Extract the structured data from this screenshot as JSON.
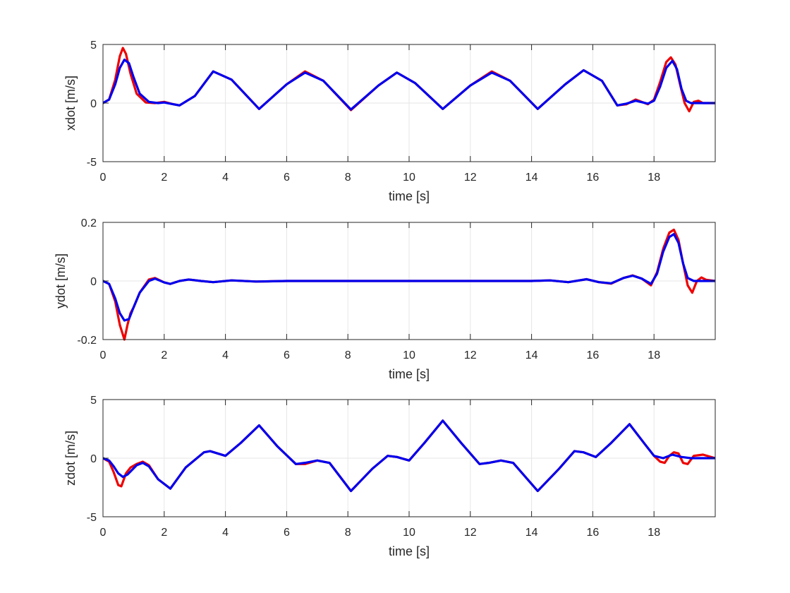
{
  "colors": {
    "reference": "#ee0000",
    "actual": "#0000ee",
    "axis": "#262626",
    "grid": "#e6e6e6"
  },
  "chart_data": [
    {
      "type": "line",
      "xlabel": "time [s]",
      "ylabel": "xdot [m/s]",
      "xlim": [
        0,
        20
      ],
      "ylim": [
        -5,
        5
      ],
      "xticks": [
        0,
        2,
        4,
        6,
        8,
        10,
        12,
        14,
        16,
        18
      ],
      "yticks": [
        -5,
        0,
        5
      ],
      "grid": true,
      "series": [
        {
          "color": "#ee0000",
          "x": [
            0,
            0.2,
            0.4,
            0.55,
            0.65,
            0.75,
            0.9,
            1.1,
            1.4,
            1.7,
            2.0,
            2.3,
            2.5,
            3.0,
            3.6,
            4.2,
            5.1,
            6.0,
            6.6,
            7.2,
            8.1,
            9.0,
            9.6,
            10.2,
            11.1,
            12.0,
            12.7,
            13.3,
            14.2,
            15.1,
            15.7,
            16.3,
            16.8,
            17.1,
            17.4,
            17.8,
            18.0,
            18.2,
            18.4,
            18.55,
            18.7,
            18.85,
            19.0,
            19.15,
            19.3,
            19.45,
            19.6,
            19.8,
            20.0
          ],
          "y": [
            0,
            0.3,
            2.0,
            4.0,
            4.7,
            4.2,
            2.5,
            0.8,
            0.05,
            0.0,
            0.1,
            -0.1,
            -0.2,
            0.6,
            2.7,
            2.0,
            -0.5,
            1.6,
            2.7,
            1.9,
            -0.6,
            1.5,
            2.6,
            1.7,
            -0.5,
            1.5,
            2.7,
            1.9,
            -0.5,
            1.6,
            2.8,
            1.9,
            -0.2,
            -0.1,
            0.3,
            -0.1,
            0.3,
            1.8,
            3.5,
            3.9,
            3.3,
            1.6,
            0.0,
            -0.7,
            0.1,
            0.2,
            0.0,
            0.0,
            0.0
          ]
        },
        {
          "color": "#0000ee",
          "x": [
            0,
            0.2,
            0.4,
            0.55,
            0.7,
            0.85,
            1.0,
            1.2,
            1.5,
            1.8,
            2.0,
            2.3,
            2.5,
            3.0,
            3.6,
            4.2,
            5.1,
            6.0,
            6.6,
            7.2,
            8.1,
            9.0,
            9.6,
            10.2,
            11.1,
            12.0,
            12.7,
            13.3,
            14.2,
            15.1,
            15.7,
            16.3,
            16.8,
            17.1,
            17.4,
            17.8,
            18.0,
            18.2,
            18.4,
            18.6,
            18.75,
            18.9,
            19.05,
            19.2,
            19.4,
            19.7,
            20.0
          ],
          "y": [
            0,
            0.3,
            1.6,
            3.0,
            3.7,
            3.4,
            2.2,
            0.8,
            0.1,
            0.0,
            0.05,
            -0.1,
            -0.2,
            0.6,
            2.7,
            2.0,
            -0.5,
            1.6,
            2.6,
            1.9,
            -0.55,
            1.5,
            2.6,
            1.7,
            -0.5,
            1.5,
            2.6,
            1.9,
            -0.5,
            1.6,
            2.8,
            1.9,
            -0.2,
            -0.05,
            0.2,
            -0.05,
            0.2,
            1.4,
            3.0,
            3.6,
            2.9,
            1.2,
            0.2,
            0.0,
            0.0,
            0.0,
            0.0
          ]
        }
      ]
    },
    {
      "type": "line",
      "xlabel": "time [s]",
      "ylabel": "ydot [m/s]",
      "xlim": [
        0,
        20
      ],
      "ylim": [
        -0.2,
        0.2
      ],
      "xticks": [
        0,
        2,
        4,
        6,
        8,
        10,
        12,
        14,
        16,
        18
      ],
      "yticks": [
        -0.2,
        0,
        0.2
      ],
      "grid": true,
      "series": [
        {
          "color": "#ee0000",
          "x": [
            0,
            0.2,
            0.4,
            0.55,
            0.7,
            0.8,
            0.9,
            1.0,
            1.2,
            1.5,
            1.7,
            2.0,
            2.2,
            2.5,
            2.8,
            3.2,
            3.6,
            4.2,
            5.0,
            6.0,
            8.0,
            10.0,
            12.0,
            14.0,
            14.6,
            15.2,
            15.8,
            16.2,
            16.6,
            17.0,
            17.3,
            17.6,
            17.9,
            18.1,
            18.3,
            18.5,
            18.65,
            18.8,
            18.95,
            19.1,
            19.25,
            19.4,
            19.55,
            19.7,
            20.0
          ],
          "y": [
            0,
            -0.01,
            -0.07,
            -0.15,
            -0.2,
            -0.15,
            -0.11,
            -0.09,
            -0.04,
            0.005,
            0.01,
            -0.005,
            -0.01,
            0.0,
            0.005,
            0.0,
            -0.004,
            0.002,
            -0.002,
            0.0,
            0.0,
            0.0,
            0.0,
            0.0,
            0.002,
            -0.004,
            0.006,
            -0.004,
            -0.009,
            0.01,
            0.019,
            0.008,
            -0.015,
            0.03,
            0.11,
            0.165,
            0.175,
            0.14,
            0.06,
            -0.015,
            -0.04,
            0.0,
            0.012,
            0.004,
            0.0
          ]
        },
        {
          "color": "#0000ee",
          "x": [
            0,
            0.2,
            0.4,
            0.55,
            0.7,
            0.85,
            1.0,
            1.2,
            1.5,
            1.7,
            2.0,
            2.2,
            2.5,
            2.8,
            3.2,
            3.6,
            4.2,
            5.0,
            6.0,
            8.0,
            10.0,
            12.0,
            14.0,
            14.6,
            15.2,
            15.8,
            16.2,
            16.6,
            17.0,
            17.3,
            17.6,
            17.9,
            18.1,
            18.3,
            18.5,
            18.65,
            18.8,
            18.95,
            19.1,
            19.3,
            19.5,
            20.0
          ],
          "y": [
            0,
            -0.01,
            -0.06,
            -0.11,
            -0.135,
            -0.13,
            -0.09,
            -0.04,
            0.0,
            0.008,
            -0.005,
            -0.01,
            0.0,
            0.005,
            0.0,
            -0.004,
            0.002,
            -0.002,
            0.0,
            0.0,
            0.0,
            0.0,
            0.0,
            0.002,
            -0.004,
            0.006,
            -0.004,
            -0.008,
            0.01,
            0.018,
            0.008,
            -0.01,
            0.025,
            0.1,
            0.15,
            0.16,
            0.13,
            0.06,
            0.01,
            0.0,
            0.0,
            0.0
          ]
        }
      ]
    },
    {
      "type": "line",
      "xlabel": "time [s]",
      "ylabel": "zdot [m/s]",
      "xlim": [
        0,
        20
      ],
      "ylim": [
        -5,
        5
      ],
      "xticks": [
        0,
        2,
        4,
        6,
        8,
        10,
        12,
        14,
        16,
        18
      ],
      "yticks": [
        -5,
        0,
        5
      ],
      "grid": true,
      "series": [
        {
          "color": "#ee0000",
          "x": [
            0,
            0.2,
            0.35,
            0.5,
            0.6,
            0.75,
            0.9,
            1.1,
            1.3,
            1.5,
            1.8,
            2.2,
            2.7,
            3.3,
            3.5,
            4.0,
            4.5,
            5.1,
            5.7,
            6.3,
            6.6,
            7.0,
            7.4,
            8.1,
            8.8,
            9.3,
            9.6,
            10.0,
            10.5,
            11.1,
            11.7,
            12.3,
            12.6,
            13.0,
            13.4,
            14.2,
            14.9,
            15.4,
            15.7,
            16.1,
            16.6,
            17.2,
            17.7,
            18.0,
            18.2,
            18.35,
            18.5,
            18.65,
            18.8,
            18.95,
            19.1,
            19.3,
            19.6,
            20.0
          ],
          "y": [
            0,
            -0.3,
            -1.2,
            -2.3,
            -2.4,
            -1.3,
            -0.8,
            -0.5,
            -0.3,
            -0.6,
            -1.8,
            -2.6,
            -0.8,
            0.5,
            0.6,
            0.2,
            1.3,
            2.8,
            1.0,
            -0.5,
            -0.5,
            -0.2,
            -0.4,
            -2.8,
            -0.9,
            0.2,
            0.1,
            -0.2,
            1.3,
            3.2,
            1.3,
            -0.5,
            -0.4,
            -0.2,
            -0.4,
            -2.8,
            -0.9,
            0.6,
            0.5,
            0.1,
            1.3,
            2.9,
            1.2,
            0.2,
            -0.3,
            -0.4,
            0.2,
            0.5,
            0.4,
            -0.4,
            -0.5,
            0.2,
            0.3,
            0.0
          ]
        },
        {
          "color": "#0000ee",
          "x": [
            0,
            0.2,
            0.35,
            0.5,
            0.65,
            0.8,
            0.95,
            1.1,
            1.3,
            1.5,
            1.8,
            2.2,
            2.7,
            3.3,
            3.5,
            4.0,
            4.5,
            5.1,
            5.7,
            6.3,
            6.6,
            7.0,
            7.4,
            8.1,
            8.8,
            9.3,
            9.6,
            10.0,
            10.5,
            11.1,
            11.7,
            12.3,
            12.6,
            13.0,
            13.4,
            14.2,
            14.9,
            15.4,
            15.7,
            16.1,
            16.6,
            17.2,
            17.7,
            18.0,
            18.3,
            18.6,
            18.9,
            19.2,
            19.6,
            20.0
          ],
          "y": [
            0,
            -0.2,
            -0.7,
            -1.3,
            -1.6,
            -1.4,
            -1.0,
            -0.6,
            -0.4,
            -0.7,
            -1.8,
            -2.6,
            -0.8,
            0.5,
            0.6,
            0.2,
            1.3,
            2.8,
            1.0,
            -0.5,
            -0.4,
            -0.2,
            -0.4,
            -2.8,
            -0.9,
            0.2,
            0.1,
            -0.2,
            1.3,
            3.2,
            1.3,
            -0.5,
            -0.4,
            -0.2,
            -0.4,
            -2.8,
            -0.9,
            0.6,
            0.5,
            0.1,
            1.3,
            2.9,
            1.2,
            0.2,
            0.0,
            0.3,
            0.1,
            0.0,
            0.0,
            0.0
          ]
        }
      ]
    }
  ]
}
